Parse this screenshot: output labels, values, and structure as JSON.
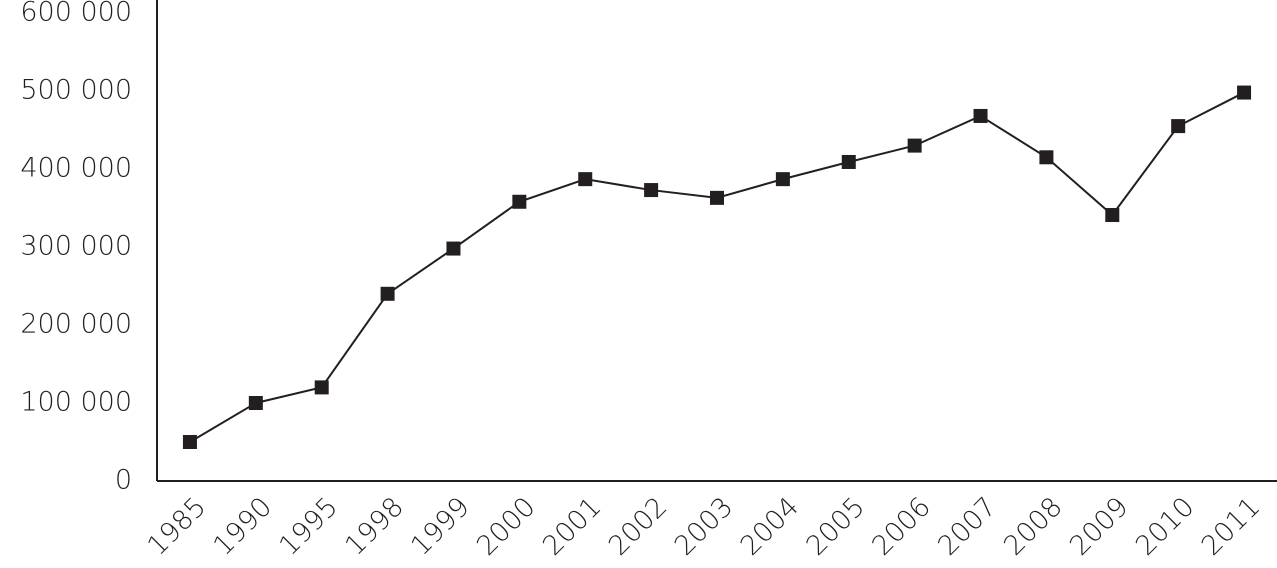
{
  "chart_data": {
    "type": "line",
    "categories": [
      "1985",
      "1990",
      "1995",
      "1998",
      "1999",
      "2000",
      "2001",
      "2002",
      "2003",
      "2004",
      "2005",
      "2006",
      "2007",
      "2008",
      "2009",
      "2010",
      "2011"
    ],
    "values": [
      50000,
      100000,
      120000,
      240000,
      298000,
      358000,
      387000,
      373000,
      363000,
      387000,
      409000,
      430000,
      468000,
      415000,
      341000,
      455000,
      498000
    ],
    "color": "#231f20",
    "ylim": [
      0,
      600000
    ],
    "yticks": [
      0,
      {
        "value": 100000,
        "label": "100 000"
      },
      {
        "value": 200000,
        "label": "200 000"
      },
      {
        "value": 300000,
        "label": "300 000"
      },
      {
        "value": 400000,
        "label": "400 000"
      },
      {
        "value": 500000,
        "label": "500 000"
      },
      {
        "value": 600000,
        "label": "600 000"
      }
    ]
  }
}
